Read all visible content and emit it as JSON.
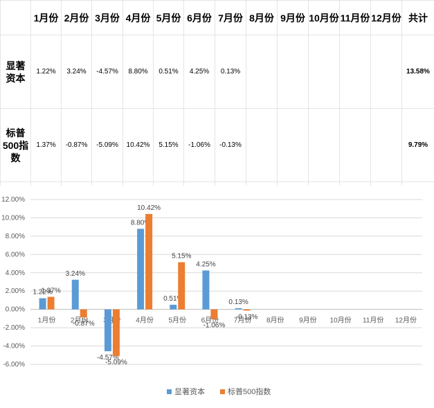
{
  "table": {
    "months": [
      "1月份",
      "2月份",
      "3月份",
      "4月份",
      "5月份",
      "6月份",
      "7月份",
      "8月份",
      "9月份",
      "10月份",
      "11月份",
      "12月份"
    ],
    "total_header": "共计",
    "rows": [
      {
        "label_lines": [
          "显著",
          "资本"
        ],
        "values": [
          "1.22%",
          "3.24%",
          "-4.57%",
          "8.80%",
          "0.51%",
          "4.25%",
          "0.13%",
          "",
          "",
          "",
          "",
          ""
        ],
        "total": "13.58%"
      },
      {
        "label_lines": [
          "标普",
          "500指",
          "数"
        ],
        "values": [
          "1.37%",
          "-0.87%",
          "-5.09%",
          "10.42%",
          "5.15%",
          "-1.06%",
          "-0.13%",
          "",
          "",
          "",
          "",
          ""
        ],
        "total": "9.79%"
      }
    ]
  },
  "chart_data": {
    "type": "bar",
    "categories": [
      "1月份",
      "2月份",
      "3月份",
      "4月份",
      "5月份",
      "6月份",
      "7月份",
      "8月份",
      "9月份",
      "10月份",
      "11月份",
      "12月份"
    ],
    "series": [
      {
        "name": "显著资本",
        "color": "#5B9BD5",
        "values": [
          1.22,
          3.24,
          -4.57,
          8.8,
          0.51,
          4.25,
          0.13,
          null,
          null,
          null,
          null,
          null
        ],
        "labels": [
          "1.22%",
          "3.24%",
          "-4.57%",
          "8.80%",
          "0.51%",
          "4.25%",
          "0.13%",
          "",
          "",
          "",
          "",
          ""
        ]
      },
      {
        "name": "标普500指数",
        "color": "#ED7D31",
        "values": [
          1.37,
          -0.87,
          -5.09,
          10.42,
          5.15,
          -1.06,
          -0.13,
          null,
          null,
          null,
          null,
          null
        ],
        "labels": [
          "1.37%",
          "-0.87%",
          "-5.09%",
          "10.42%",
          "5.15%",
          "-1.06%",
          "-0.13%",
          "",
          "",
          "",
          "",
          ""
        ]
      }
    ],
    "y_ticks": [
      12,
      10,
      8,
      6,
      4,
      2,
      0,
      -2,
      -4,
      -6
    ],
    "y_tick_labels": [
      "12.00%",
      "10.00%",
      "8.00%",
      "6.00%",
      "4.00%",
      "2.00%",
      "0.00%",
      "-2.00%",
      "-4.00%",
      "-6.00%"
    ],
    "ylim": [
      -6,
      12
    ],
    "grid": true,
    "legend_position": "bottom"
  }
}
